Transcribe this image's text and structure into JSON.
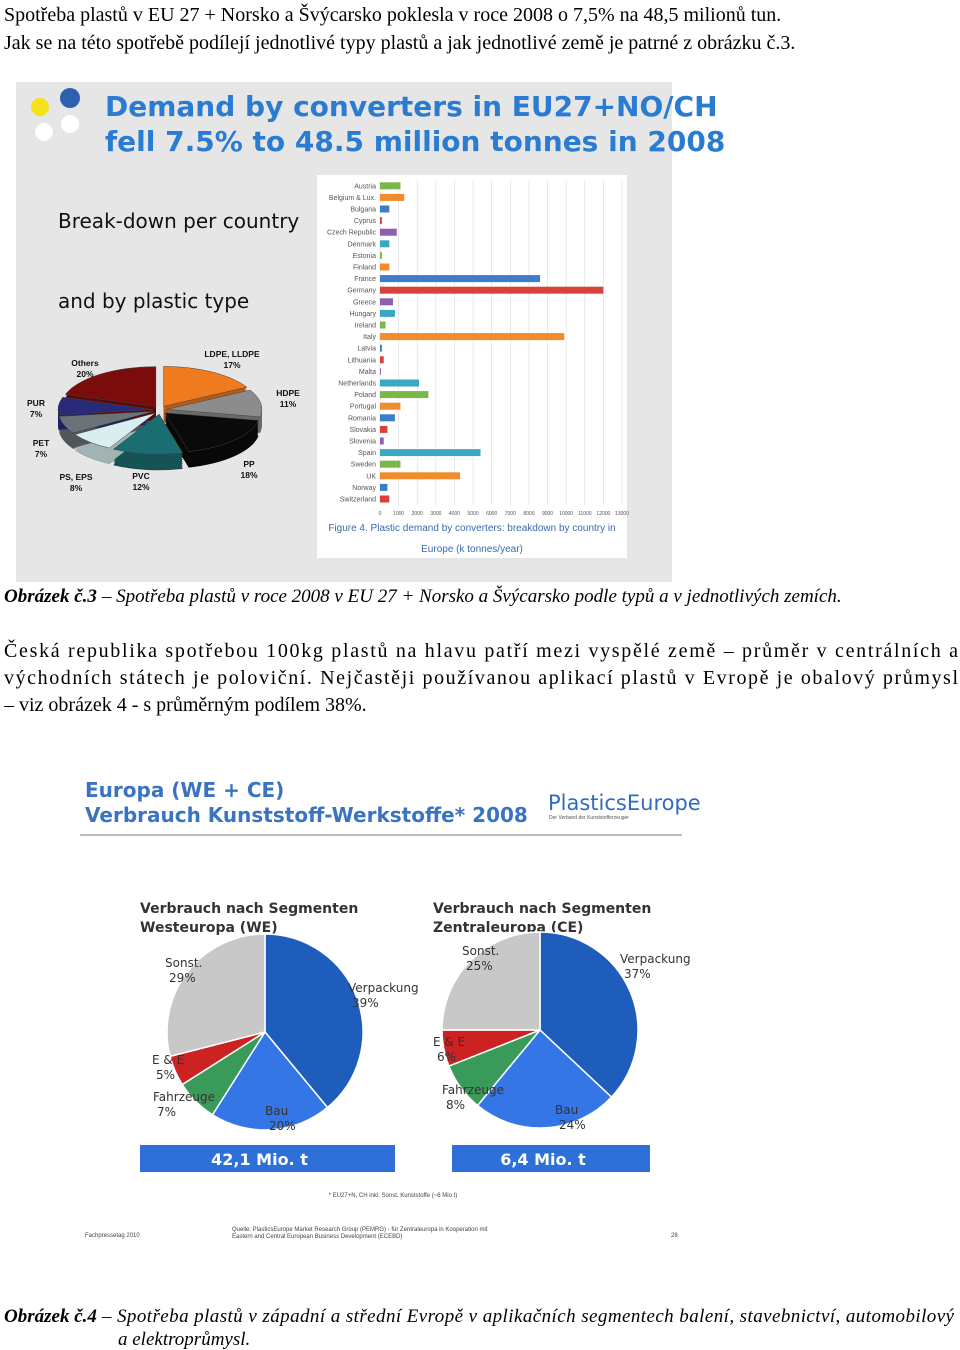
{
  "intro_lines": [
    "Spotřeba plastů v EU 27 + Norsko a Švýcarsko poklesla v roce 2008 o 7,5% na 48,5 milionů tun.",
    "Jak se na této spotřebě podílejí jednotlivé typy plastů a jak jednotlivé země je patrné z obrázku č.3."
  ],
  "figure3": {
    "title_lines": [
      "Demand by converters in EU27+NO/CH",
      "fell 7.5% to 48.5 million tonnes in 2008"
    ],
    "subtitle_lines": [
      "Break-down per country",
      "and by plastic type"
    ],
    "pie": {
      "slices": [
        {
          "label": "LDPE, LLDPE",
          "value": 17,
          "value_label": "17%",
          "color": "#f07a1e"
        },
        {
          "label": "HDPE",
          "value": 11,
          "value_label": "11%",
          "color": "#8c8c8c"
        },
        {
          "label": "PP",
          "value": 18,
          "value_label": "18%",
          "color": "#0a0a0a"
        },
        {
          "label": "PVC",
          "value": 12,
          "value_label": "12%",
          "color": "#1a6e72"
        },
        {
          "label": "PS, EPS",
          "value": 8,
          "value_label": "8%",
          "color": "#d8eef0"
        },
        {
          "label": "PET",
          "value": 7,
          "value_label": "7%",
          "color": "#6a7478"
        },
        {
          "label": "PUR",
          "value": 7,
          "value_label": "7%",
          "color": "#2a2a7a"
        },
        {
          "label": "Others",
          "value": 20,
          "value_label": "20%",
          "color": "#7a0c0c"
        }
      ]
    },
    "bar_chart": {
      "categories": [
        "Austria",
        "Belgium & Lux.",
        "Bulgaria",
        "Cyprus",
        "Czech Republic",
        "Denmark",
        "Estonia",
        "Finland",
        "France",
        "Germany",
        "Greece",
        "Hungary",
        "Ireland",
        "Italy",
        "Latvia",
        "Lithuania",
        "Malta",
        "Netherlands",
        "Poland",
        "Portugal",
        "Romania",
        "Slovakia",
        "Slovenia",
        "Spain",
        "Sweden",
        "UK",
        "Norway",
        "Switzerland"
      ],
      "values": [
        1100,
        1300,
        500,
        100,
        900,
        500,
        100,
        500,
        8600,
        12000,
        700,
        800,
        300,
        9900,
        100,
        200,
        50,
        2100,
        2600,
        1100,
        800,
        400,
        200,
        5400,
        1100,
        4300,
        400,
        500
      ],
      "colors": [
        "#7ab648",
        "#f08c2c",
        "#3d7cc9",
        "#d9413a",
        "#8e5fb0",
        "#3aa8c1"
      ],
      "xlim": [
        0,
        13000
      ],
      "xticks": [
        0,
        1000,
        2000,
        3000,
        4000,
        5000,
        6000,
        7000,
        8000,
        9000,
        10000,
        11000,
        12000,
        13000
      ],
      "grid": true,
      "caption_lines": [
        "Figure 4. Plastic demand by converters: breakdown by country in",
        "Europe (k tonnes/year)"
      ]
    }
  },
  "caption3": {
    "label": "Obrázek č.3",
    "text": "– Spotřeba plastů v roce 2008 v EU 27 + Norsko a Švýcarsko podle typů a v jednotlivých zemích."
  },
  "body_lines": [
    "Česká republika spotřebou 100kg plastů na hlavu  patří mezi vyspělé země – průměr v centrálních a",
    "východních státech je poloviční. Nejčastěji používanou aplikací plastů v Evropě je obalový průmysl",
    "– viz obrázek 4 - s průměrným podílem 38%."
  ],
  "figure4": {
    "title_lines": [
      "Europa (WE + CE)",
      "Verbrauch Kunststoff-Werkstoffe* 2008"
    ],
    "logo": "PlasticsEurope",
    "logo_tagline": "Der Verband der Kunststofferzeuger",
    "pies": [
      {
        "title_lines": [
          "Verbrauch nach Segmenten",
          "Westeuropa (WE)"
        ],
        "slices": [
          {
            "label": "Verpackung",
            "value": 39,
            "value_label": "39%",
            "color": "#1f5dbd"
          },
          {
            "label": "Bau",
            "value": 20,
            "value_label": "20%",
            "color": "#3476e6"
          },
          {
            "label": "Fahrzeuge",
            "value": 7,
            "value_label": "7%",
            "color": "#3a9a5a"
          },
          {
            "label": "E & E",
            "value": 5,
            "value_label": "5%",
            "color": "#cc2222"
          },
          {
            "label": "Sonst.",
            "value": 29,
            "value_label": "29%",
            "color": "#c8c8c8"
          }
        ],
        "total": "42,1 Mio. t"
      },
      {
        "title_lines": [
          "Verbrauch nach Segmenten",
          "Zentraleuropa (CE)"
        ],
        "slices": [
          {
            "label": "Verpackung",
            "value": 37,
            "value_label": "37%",
            "color": "#1f5dbd"
          },
          {
            "label": "Bau",
            "value": 24,
            "value_label": "24%",
            "color": "#3476e6"
          },
          {
            "label": "Fahrzeuge",
            "value": 8,
            "value_label": "8%",
            "color": "#3a9a5a"
          },
          {
            "label": "E & E",
            "value": 6,
            "value_label": "6%",
            "color": "#cc2222"
          },
          {
            "label": "Sonst.",
            "value": 25,
            "value_label": "25%",
            "color": "#c8c8c8"
          }
        ],
        "total": "6,4 Mio. t"
      }
    ],
    "footnote": "* EU27+N, CH inkl. Sonst. Kunststoffe (~6 Mio t)",
    "source_lines": [
      "Quelle: PlasticsEurope Market Research Group (PEMRG) - für Zentraleuropa in Kooperation mit",
      "Eastern and Central European Business Development (ECEBD)"
    ],
    "footer_left": "Fachpressetag 2010",
    "page_number": "28"
  },
  "caption4": {
    "label": "Obrázek č.4",
    "text_lines": [
      "– Spotřeba plastů v západní a střední Evropě v aplikačních segmentech balení, stavebnictví, automobilový",
      "a elektroprůmysl."
    ]
  }
}
